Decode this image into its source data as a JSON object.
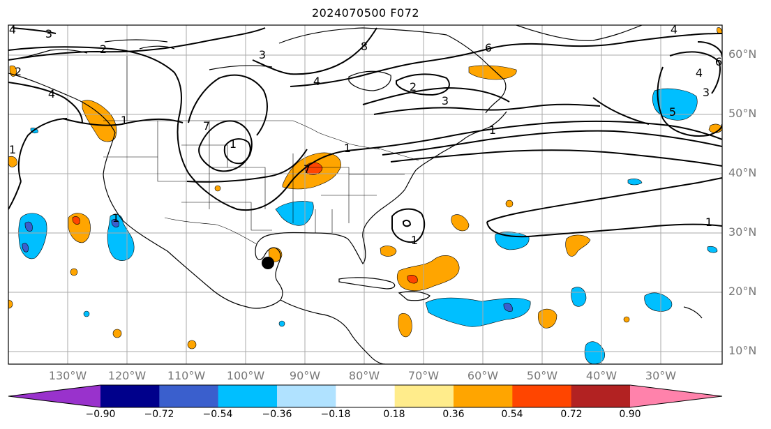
{
  "title": "2024070500 F072",
  "map": {
    "projection": "PlateCarree",
    "lon_range": [
      -142,
      -21
    ],
    "lat_range": [
      7,
      65
    ],
    "station_marker": {
      "lon": -95.5,
      "lat": 25.0,
      "shape": "filled-circle"
    }
  },
  "lat_labels": [
    "60°N",
    "50°N",
    "40°N",
    "30°N",
    "20°N",
    "10°N"
  ],
  "lon_labels": [
    "130°W",
    "120°W",
    "110°W",
    "100°W",
    "90°W",
    "80°W",
    "70°W",
    "60°W",
    "50°W",
    "40°W",
    "30°W"
  ],
  "contour_labels": [
    "4",
    "3",
    "2",
    "4",
    "2",
    "1",
    "1",
    "7",
    "4",
    "3",
    "8",
    "6",
    "2",
    "3",
    "1",
    "1",
    "7",
    "1",
    "1",
    "4",
    "5",
    "3",
    "6",
    "4",
    "1",
    "1"
  ],
  "colorbar": {
    "extend": "both",
    "ticks": [
      "−0.90",
      "−0.72",
      "−0.54",
      "−0.36",
      "−0.18",
      "0.18",
      "0.36",
      "0.54",
      "0.72",
      "0.90"
    ],
    "colors": [
      "#9932cc",
      "#00008b",
      "#3a5fcd",
      "#00bfff",
      "#b0e2ff",
      "#ffffff",
      "#ffec8b",
      "#ffa500",
      "#ff4500",
      "#b22222",
      "#ff82ab"
    ]
  }
}
